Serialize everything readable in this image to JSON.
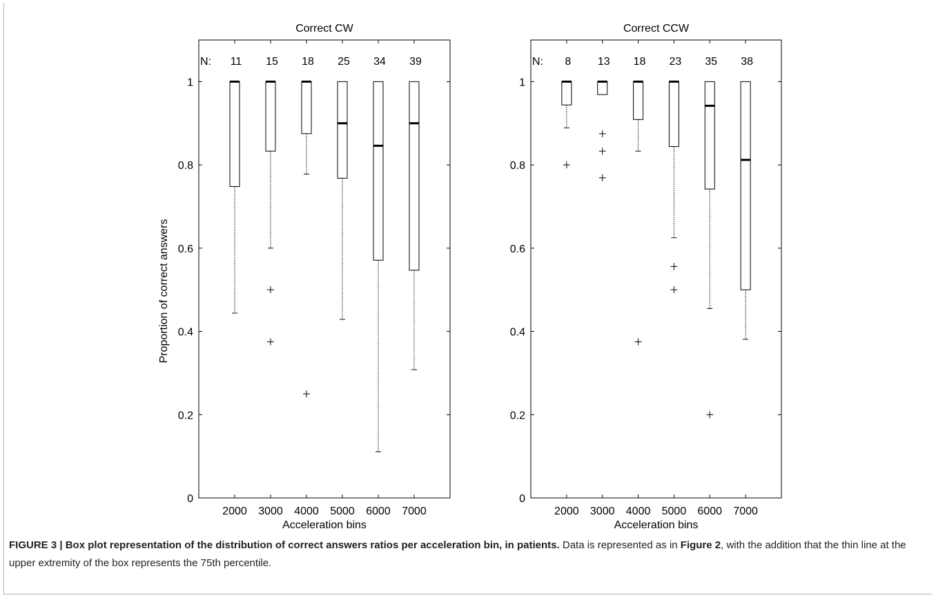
{
  "chart_data": [
    {
      "type": "box",
      "title": "Correct CW",
      "xlabel": "Acceleration bins",
      "ylabel": "Proportion of correct answers",
      "ylim": [
        0,
        1.1
      ],
      "yticks": [
        "0",
        "0.2",
        "0.4",
        "0.6",
        "0.8",
        "1"
      ],
      "n_prefix": "N:",
      "categories": [
        "2000",
        "3000",
        "4000",
        "5000",
        "6000",
        "7000"
      ],
      "n": [
        "11",
        "15",
        "18",
        "25",
        "34",
        "39"
      ],
      "boxes": [
        {
          "category": "2000",
          "whisker_low": 0.444,
          "q1": 0.748,
          "median": 1.0,
          "q3": 1.0,
          "whisker_high": 1.0,
          "outliers": []
        },
        {
          "category": "3000",
          "whisker_low": 0.6,
          "q1": 0.833,
          "median": 1.0,
          "q3": 1.0,
          "whisker_high": 1.0,
          "outliers": [
            0.5,
            0.375
          ]
        },
        {
          "category": "4000",
          "whisker_low": 0.778,
          "q1": 0.875,
          "median": 1.0,
          "q3": 1.0,
          "whisker_high": 1.0,
          "outliers": [
            0.25
          ]
        },
        {
          "category": "5000",
          "whisker_low": 0.429,
          "q1": 0.768,
          "median": 0.9,
          "q3": 1.0,
          "whisker_high": 1.0,
          "outliers": []
        },
        {
          "category": "6000",
          "whisker_low": 0.111,
          "q1": 0.571,
          "median": 0.846,
          "q3": 1.0,
          "whisker_high": 1.0,
          "outliers": []
        },
        {
          "category": "7000",
          "whisker_low": 0.308,
          "q1": 0.547,
          "median": 0.9,
          "q3": 1.0,
          "whisker_high": 1.0,
          "outliers": []
        }
      ]
    },
    {
      "type": "box",
      "title": "Correct CCW",
      "xlabel": "Acceleration bins",
      "ylabel": "",
      "ylim": [
        0,
        1.1
      ],
      "yticks": [
        "0",
        "0.2",
        "0.4",
        "0.6",
        "0.8",
        "1"
      ],
      "n_prefix": "N:",
      "categories": [
        "2000",
        "3000",
        "4000",
        "5000",
        "6000",
        "7000"
      ],
      "n": [
        "8",
        "13",
        "18",
        "23",
        "35",
        "38"
      ],
      "boxes": [
        {
          "category": "2000",
          "whisker_low": 0.889,
          "q1": 0.944,
          "median": 1.0,
          "q3": 1.0,
          "whisker_high": 1.0,
          "outliers": [
            0.8
          ]
        },
        {
          "category": "3000",
          "whisker_low": 0.969,
          "q1": 0.969,
          "median": 1.0,
          "q3": 1.0,
          "whisker_high": 1.0,
          "outliers": [
            0.875,
            0.833,
            0.769
          ]
        },
        {
          "category": "4000",
          "whisker_low": 0.833,
          "q1": 0.909,
          "median": 1.0,
          "q3": 1.0,
          "whisker_high": 1.0,
          "outliers": [
            0.375
          ]
        },
        {
          "category": "5000",
          "whisker_low": 0.625,
          "q1": 0.844,
          "median": 1.0,
          "q3": 1.0,
          "whisker_high": 1.0,
          "outliers": [
            0.556,
            0.5
          ]
        },
        {
          "category": "6000",
          "whisker_low": 0.455,
          "q1": 0.742,
          "median": 0.942,
          "q3": 1.0,
          "whisker_high": 1.0,
          "outliers": [
            0.2
          ]
        },
        {
          "category": "7000",
          "whisker_low": 0.381,
          "q1": 0.5,
          "median": 0.812,
          "q3": 1.0,
          "whisker_high": 1.0,
          "outliers": []
        }
      ]
    }
  ],
  "caption": {
    "bold": "FIGURE 3 | Box plot representation of the distribution of correct answers ratios per acceleration bin, in patients.",
    "text1": " Data is represented as in ",
    "ref": "Figure 2",
    "text2": ", with the addition that the thin line at the upper extremity of the box represents the 75th percentile."
  }
}
